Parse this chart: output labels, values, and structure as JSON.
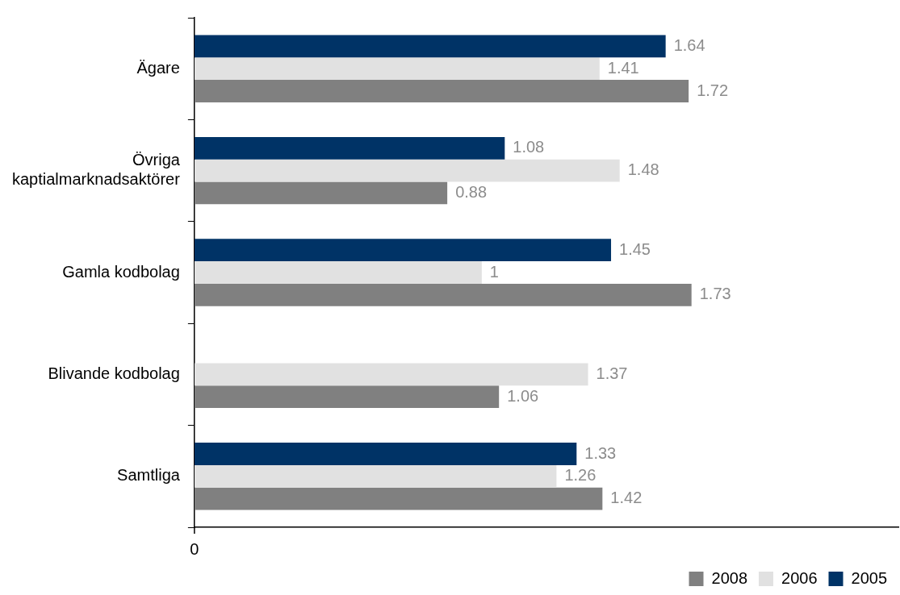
{
  "chart_data": {
    "type": "bar",
    "orientation": "horizontal",
    "categories": [
      "Ägare",
      "Övriga kaptialmarknadsaktörer",
      "Gamla kodbolag",
      "Blivande kodbolag",
      "Samtliga"
    ],
    "series": [
      {
        "name": "2005",
        "color": "#003366",
        "values": [
          1.64,
          1.08,
          1.45,
          null,
          1.33
        ]
      },
      {
        "name": "2006",
        "color": "#e1e1e1",
        "values": [
          1.41,
          1.48,
          1,
          1.37,
          1.26
        ]
      },
      {
        "name": "2008",
        "color": "#808080",
        "values": [
          1.72,
          0.88,
          1.73,
          1.06,
          1.42
        ]
      }
    ],
    "xlim": [
      0,
      2.45
    ],
    "annotations": [
      "0"
    ],
    "legend": "bottom right",
    "data_labels": true
  }
}
